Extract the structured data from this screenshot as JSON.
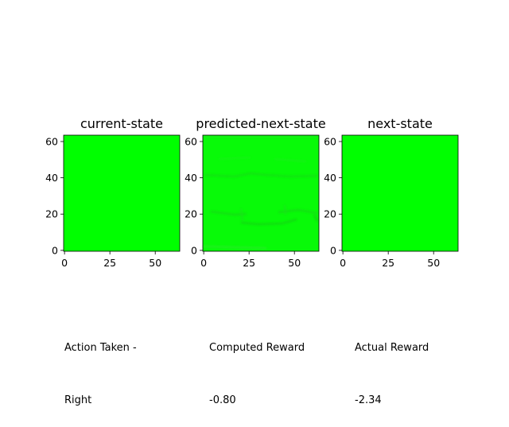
{
  "colors": {
    "image_fill": "#00ff00",
    "axis": "#000000",
    "background": "#ffffff"
  },
  "chart_data": [
    {
      "type": "heatmap",
      "title": "current-state",
      "xticks": [
        0,
        25,
        50
      ],
      "yticks": [
        0,
        20,
        40,
        60
      ],
      "xlim": [
        -0.5,
        63.5
      ],
      "ylim": [
        63.5,
        -0.5
      ],
      "image": "uniform green 64x64 frame"
    },
    {
      "type": "heatmap",
      "title": "predicted-next-state",
      "xticks": [
        0,
        25,
        50
      ],
      "yticks": [
        0,
        20,
        40,
        60
      ],
      "xlim": [
        -0.5,
        63.5
      ],
      "ylim": [
        63.5,
        -0.5
      ],
      "image": "mostly green 64x64 frame with faint darker artifact lines"
    },
    {
      "type": "heatmap",
      "title": "next-state",
      "xticks": [
        0,
        25,
        50
      ],
      "yticks": [
        0,
        20,
        40,
        60
      ],
      "xlim": [
        -0.5,
        63.5
      ],
      "ylim": [
        63.5,
        -0.5
      ],
      "image": "uniform green 64x64 frame"
    }
  ],
  "info": {
    "action_label": "Action Taken -",
    "action_value": "Right",
    "computed_reward_label": "Computed Reward",
    "computed_reward_value": "-0.80",
    "actual_reward_label": "Actual Reward",
    "actual_reward_value": "-2.34"
  }
}
